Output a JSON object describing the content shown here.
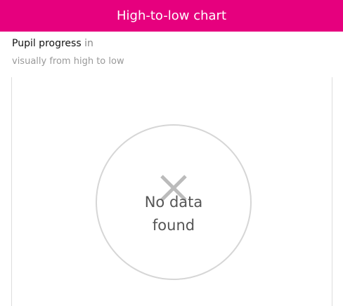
{
  "header": {
    "title": "High-to-low chart"
  },
  "description": {
    "bold": "Pupil progress",
    "rest": "in",
    "subtitle": "visually from high to low"
  },
  "empty_state": {
    "message": "No data found"
  }
}
